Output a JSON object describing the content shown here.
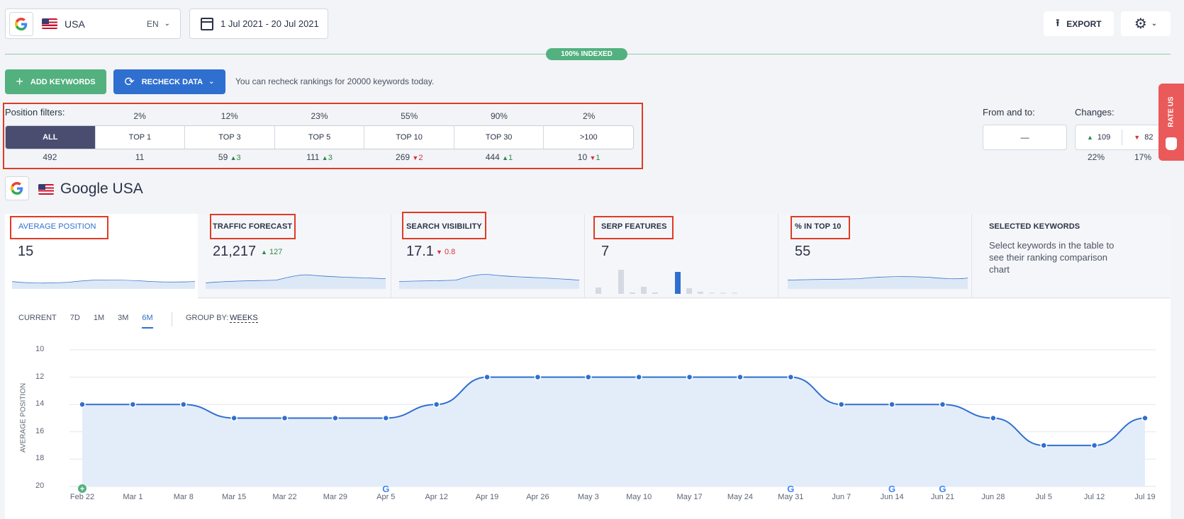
{
  "header": {
    "location": "USA",
    "language": "EN",
    "date_range": "1 Jul 2021 - 20 Jul 2021",
    "export_label": "EXPORT",
    "indexed_badge": "100% INDEXED"
  },
  "actions": {
    "add_keywords": "ADD KEYWORDS",
    "recheck_data": "RECHECK DATA",
    "recheck_note": "You can recheck rankings for 20000 keywords today."
  },
  "position_filters": {
    "label": "Position filters:",
    "items": [
      {
        "label": "ALL",
        "pct": "",
        "count": "492",
        "delta": "",
        "dir": ""
      },
      {
        "label": "TOP 1",
        "pct": "2%",
        "count": "11",
        "delta": "",
        "dir": ""
      },
      {
        "label": "TOP 3",
        "pct": "12%",
        "count": "59",
        "delta": "3",
        "dir": "up"
      },
      {
        "label": "TOP 5",
        "pct": "23%",
        "count": "111",
        "delta": "3",
        "dir": "up"
      },
      {
        "label": "TOP 10",
        "pct": "55%",
        "count": "269",
        "delta": "2",
        "dir": "down"
      },
      {
        "label": "TOP 30",
        "pct": "90%",
        "count": "444",
        "delta": "1",
        "dir": "up"
      },
      {
        "label": ">100",
        "pct": "2%",
        "count": "10",
        "delta": "1",
        "dir": "down"
      }
    ]
  },
  "from_to": {
    "label": "From and to:",
    "value": "—"
  },
  "changes": {
    "label": "Changes:",
    "up": "109",
    "down": "82",
    "up_pct": "22%",
    "down_pct": "17%"
  },
  "rate_us": "RATE US",
  "engine_title": "Google USA",
  "metrics": {
    "avg_position": {
      "label": "AVERAGE POSITION",
      "value": "15"
    },
    "traffic": {
      "label": "TRAFFIC FORECAST",
      "value": "21,217",
      "delta": "127"
    },
    "visibility": {
      "label": "SEARCH VISIBILITY",
      "value": "17.1",
      "delta": "0.8"
    },
    "serp": {
      "label": "SERP FEATURES",
      "value": "7"
    },
    "top10": {
      "label": "% IN TOP 10",
      "value": "55"
    },
    "selected": {
      "label": "SELECTED KEYWORDS",
      "text": "Select keywords in the table to see their ranking comparison chart"
    }
  },
  "chart_controls": {
    "ranges": [
      "CURRENT",
      "7D",
      "1M",
      "3M",
      "6M"
    ],
    "active_range": "6M",
    "group_by_label": "GROUP BY:",
    "group_by_value": "WEEKS"
  },
  "chart_data": {
    "type": "area",
    "ylabel": "AVERAGE POSITION",
    "ylim": [
      20,
      10
    ],
    "yticks": [
      "10",
      "12",
      "14",
      "16",
      "18",
      "20"
    ],
    "categories": [
      "Feb 22",
      "Mar 1",
      "Mar 8",
      "Mar 15",
      "Mar 22",
      "Mar 29",
      "Apr 5",
      "Apr 12",
      "Apr 19",
      "Apr 26",
      "May 3",
      "May 10",
      "May 17",
      "May 24",
      "May 31",
      "Jun 7",
      "Jun 14",
      "Jun 21",
      "Jun 28",
      "Jul 5",
      "Jul 12",
      "Jul 19"
    ],
    "values": [
      14,
      14,
      14,
      15,
      15,
      15,
      15,
      14,
      12,
      12,
      12,
      12,
      12,
      12,
      12,
      14,
      14,
      14,
      15,
      17,
      17,
      15
    ],
    "markers": {
      "Feb 22": "plus",
      "Apr 5": "google",
      "May 31": "google",
      "Jun 14": "google",
      "Jun 21": "google"
    },
    "colors": {
      "line": "#2f6fcf",
      "fill": "#e3edf9"
    }
  },
  "colors": {
    "accent": "#2f6fcf",
    "green": "#52b17f",
    "dark": "#4a4d6f",
    "annot": "#e03b24"
  }
}
